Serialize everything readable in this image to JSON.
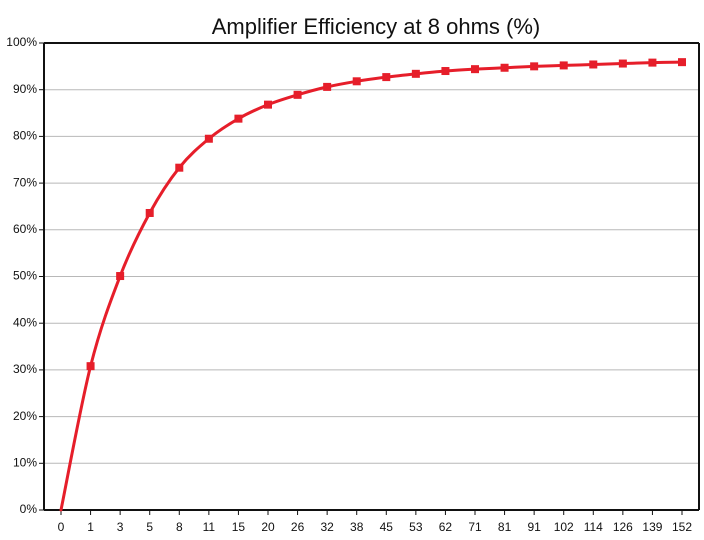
{
  "chart_data": {
    "type": "line",
    "title": "Amplifier Efficiency at 8 ohms (%)",
    "xlabel": "",
    "ylabel": "",
    "x_categories": [
      "0",
      "1",
      "3",
      "5",
      "8",
      "11",
      "15",
      "20",
      "26",
      "32",
      "38",
      "45",
      "53",
      "62",
      "71",
      "81",
      "91",
      "102",
      "114",
      "126",
      "139",
      "152"
    ],
    "y_ticks": [
      "0%",
      "10%",
      "20%",
      "30%",
      "40%",
      "50%",
      "60%",
      "70%",
      "80%",
      "90%",
      "100%"
    ],
    "ylim": [
      0,
      100
    ],
    "series": [
      {
        "values": [
          0,
          30.8,
          50.1,
          63.6,
          73.3,
          79.5,
          83.8,
          86.8,
          88.9,
          90.6,
          91.8,
          92.7,
          93.4,
          94.0,
          94.4,
          94.7,
          95.0,
          95.2,
          95.4,
          95.6,
          95.8,
          95.9
        ],
        "color": "#e61e2a"
      }
    ],
    "grid": {
      "horizontal": true,
      "vertical": false,
      "color": "#b8b8b8"
    },
    "colors": {
      "axis": "#111111",
      "background": "#ffffff"
    }
  }
}
